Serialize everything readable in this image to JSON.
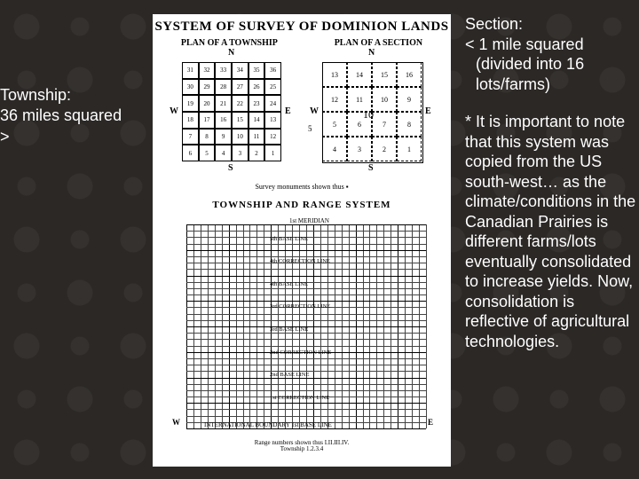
{
  "left_annotation": {
    "line1": "Township:",
    "line2": "36 miles squared",
    "line3": ">"
  },
  "right_annotation": {
    "section_title": "Section:",
    "section_line2": "< 1 mile squared",
    "section_line3": "(divided into 16",
    "section_line4": "lots/farms)",
    "note": "* It is important to note that this system was copied from the US south-west… as the climate/conditions in the Canadian Prairies is different farms/lots eventually consolidated to increase yields. Now, consolidation is reflective of agricultural technologies."
  },
  "figure": {
    "title": "SYSTEM OF SURVEY OF DOMINION LANDS",
    "sub_left": "PLAN OF A TOWNSHIP",
    "sub_right": "PLAN OF A SECTION",
    "compass": {
      "n": "N",
      "s": "S",
      "e": "E",
      "w": "W"
    },
    "township_grid": {
      "cells": [
        "31",
        "32",
        "33",
        "34",
        "35",
        "36",
        "30",
        "29",
        "28",
        "27",
        "26",
        "25",
        "19",
        "20",
        "21",
        "22",
        "23",
        "24",
        "18",
        "17",
        "16",
        "15",
        "14",
        "13",
        "7",
        "8",
        "9",
        "10",
        "11",
        "12",
        "6",
        "5",
        "4",
        "3",
        "2",
        "1"
      ]
    },
    "section_grid": {
      "cells": [
        "13",
        "14",
        "15",
        "16",
        "12",
        "11",
        "10",
        "9",
        "5",
        "6",
        "7",
        "8",
        "4",
        "3",
        "2",
        "1"
      ],
      "chains": "10",
      "league": "5"
    },
    "survey_monuments": "Survey monuments shown thus ▪",
    "mid_title": "TOWNSHIP AND RANGE SYSTEM",
    "range_system": {
      "baselines": [
        "5th BASE LINE",
        "4th CORRECTION LINE",
        "4th BASE LINE",
        "3rd CORRECTION LINE",
        "3rd BASE LINE",
        "2nd CORRECTION LINE",
        "2nd BASE LINE",
        "1st CORRECTION LINE"
      ],
      "intl_boundary": "INTERNATIONAL BOUNDARY 1st BASE LINE",
      "range_numbers": "Range numbers shown thus I.II.III.IV.",
      "township_label": "Township             1.2.3.4",
      "meridian": "1st MERIDIAN",
      "side_w": "W",
      "side_e": "E"
    }
  },
  "colors": {
    "bg": "#2b2826",
    "text": "#ffffff",
    "paper": "#ffffff",
    "ink": "#000000"
  }
}
